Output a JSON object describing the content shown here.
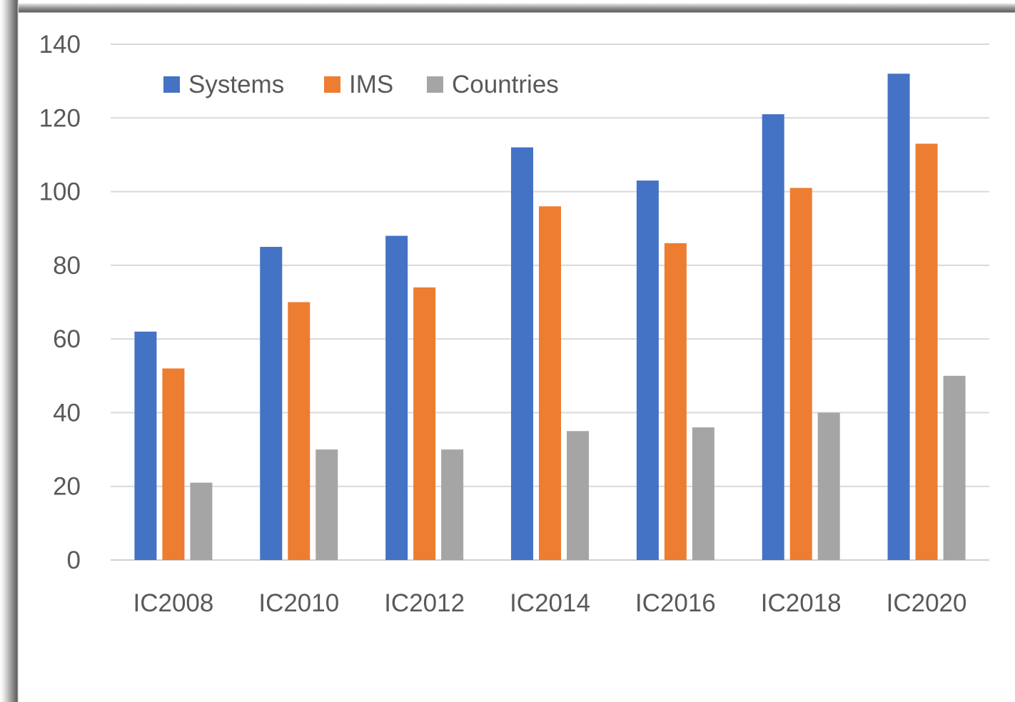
{
  "chart_data": {
    "type": "bar",
    "title": "",
    "xlabel": "",
    "ylabel": "",
    "categories": [
      "IC2008",
      "IC2010",
      "IC2012",
      "IC2014",
      "IC2016",
      "IC2018",
      "IC2020"
    ],
    "series": [
      {
        "name": "Systems",
        "color": "#4472c4",
        "values": [
          62,
          85,
          88,
          112,
          103,
          121,
          132
        ]
      },
      {
        "name": "IMS",
        "color": "#ed7d31",
        "values": [
          52,
          70,
          74,
          96,
          86,
          101,
          113
        ]
      },
      {
        "name": "Countries",
        "color": "#a5a5a5",
        "values": [
          21,
          30,
          30,
          35,
          36,
          40,
          50
        ]
      }
    ],
    "ylim": [
      0,
      140
    ],
    "yticks": [
      0,
      20,
      40,
      60,
      80,
      100,
      120,
      140
    ],
    "grid": true,
    "legend_position": "top-left"
  }
}
